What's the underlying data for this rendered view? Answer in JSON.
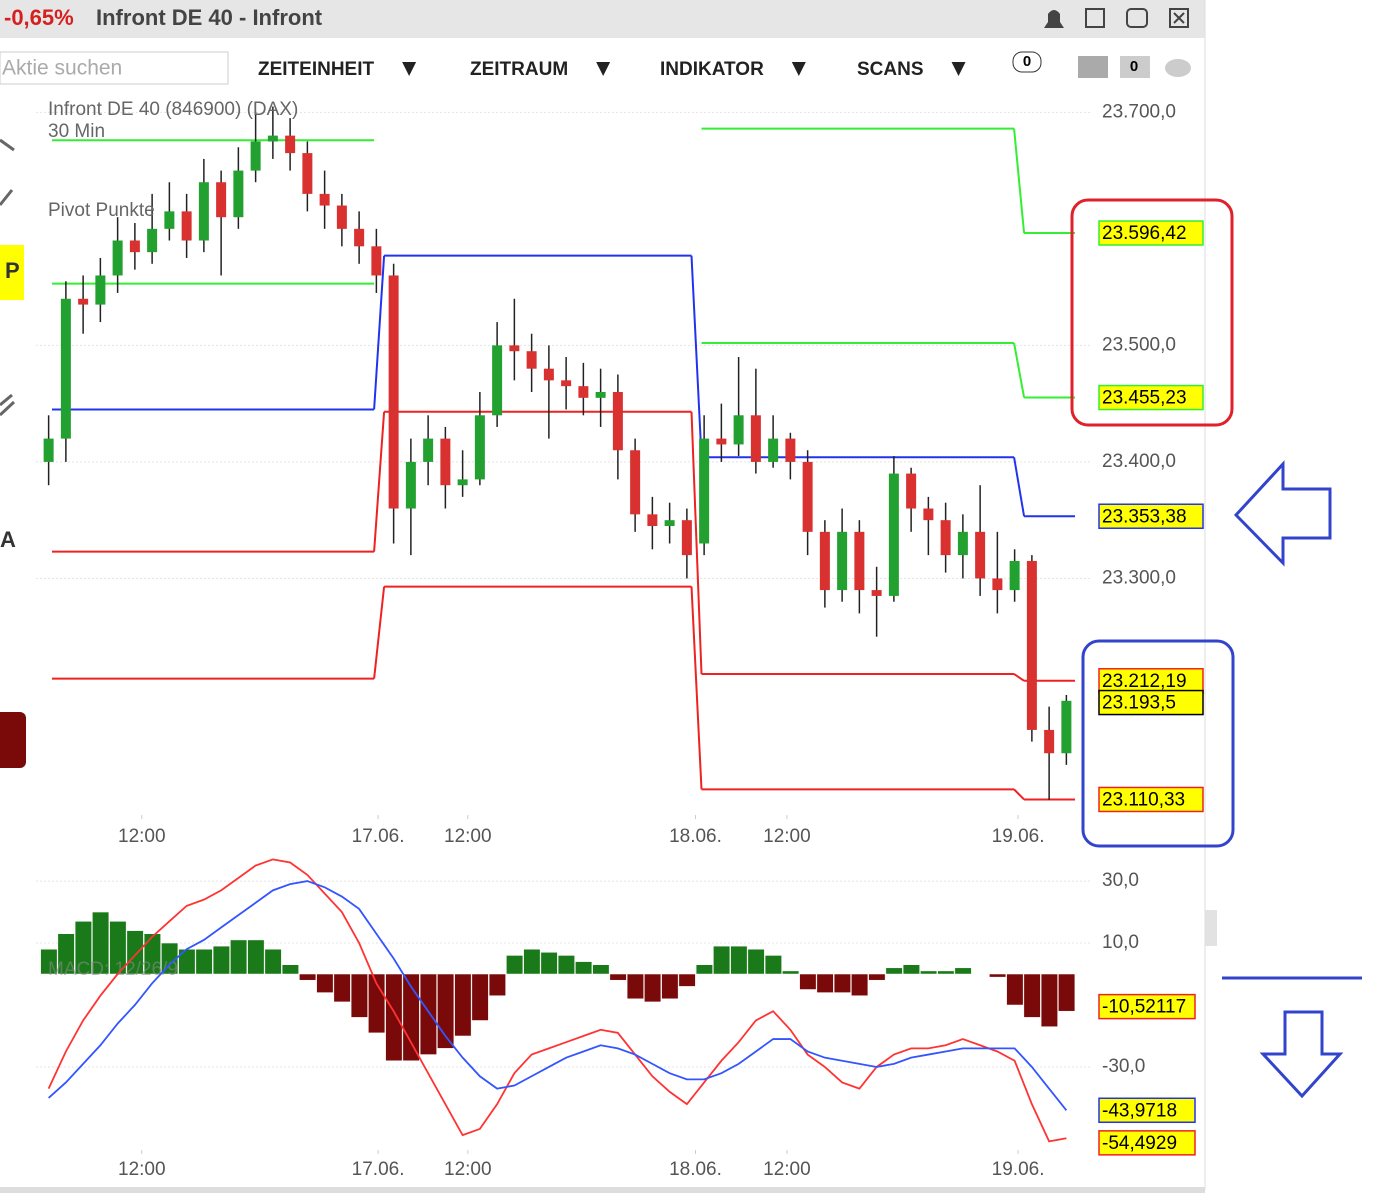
{
  "header": {
    "change": "-0,65%",
    "title": "Infront DE 40 - Infront"
  },
  "toolbar": {
    "search_placeholder": "Aktie suchen",
    "menus": [
      "ZEITEINHEIT",
      "ZEITRAUM",
      "INDIKATOR",
      "SCANS"
    ],
    "badges": [
      "0",
      "0"
    ]
  },
  "sidebar": [
    "P",
    "A"
  ],
  "chart_data": [
    {
      "type": "candlestick",
      "title": "Infront DE 40 (846900) (DAX)",
      "subtitle": "30 Min",
      "annotation": "Pivot Punkte",
      "open": [
        23400,
        23420,
        23540,
        23535,
        23560,
        23590,
        23580,
        23600,
        23615,
        23590,
        23640,
        23610,
        23650,
        23675,
        23680,
        23665,
        23630,
        23620,
        23600,
        23585,
        23560,
        23360,
        23400,
        23420,
        23380,
        23385,
        23440,
        23500,
        23495,
        23480,
        23470,
        23465,
        23455,
        23460,
        23410,
        23355,
        23345,
        23350,
        23330,
        23420,
        23415,
        23440,
        23400,
        23420,
        23400,
        23340,
        23290,
        23340,
        23290,
        23285,
        23390,
        23360,
        23350,
        23320,
        23340,
        23300,
        23290,
        23315,
        23170,
        23150
      ],
      "high": [
        23440,
        23555,
        23560,
        23575,
        23610,
        23605,
        23630,
        23640,
        23630,
        23660,
        23650,
        23670,
        23700,
        23705,
        23695,
        23675,
        23650,
        23630,
        23615,
        23600,
        23570,
        23420,
        23440,
        23430,
        23410,
        23460,
        23520,
        23540,
        23510,
        23500,
        23490,
        23485,
        23480,
        23475,
        23420,
        23370,
        23365,
        23360,
        23440,
        23450,
        23490,
        23480,
        23440,
        23425,
        23410,
        23350,
        23360,
        23350,
        23310,
        23405,
        23395,
        23370,
        23365,
        23355,
        23380,
        23340,
        23325,
        23320,
        23190,
        23200
      ],
      "low": [
        23380,
        23400,
        23510,
        23520,
        23545,
        23565,
        23570,
        23590,
        23575,
        23580,
        23560,
        23600,
        23640,
        23660,
        23650,
        23615,
        23600,
        23585,
        23570,
        23545,
        23330,
        23320,
        23380,
        23360,
        23370,
        23380,
        23430,
        23470,
        23460,
        23420,
        23445,
        23440,
        23430,
        23385,
        23340,
        23325,
        23330,
        23300,
        23320,
        23400,
        23405,
        23390,
        23395,
        23385,
        23320,
        23275,
        23280,
        23270,
        23250,
        23280,
        23340,
        23320,
        23305,
        23300,
        23285,
        23270,
        23280,
        23160,
        23110,
        23140
      ],
      "close": [
        23420,
        23540,
        23535,
        23560,
        23590,
        23580,
        23600,
        23615,
        23590,
        23640,
        23610,
        23650,
        23675,
        23680,
        23665,
        23630,
        23620,
        23600,
        23585,
        23560,
        23360,
        23400,
        23420,
        23380,
        23385,
        23440,
        23500,
        23495,
        23480,
        23470,
        23465,
        23455,
        23460,
        23410,
        23355,
        23345,
        23350,
        23320,
        23420,
        23415,
        23440,
        23400,
        23420,
        23400,
        23340,
        23290,
        23340,
        23290,
        23285,
        23390,
        23360,
        23350,
        23320,
        23340,
        23300,
        23290,
        23315,
        23170,
        23150,
        23195
      ],
      "up_color": "#22a030",
      "down_color": "#d93030",
      "xlim": [
        0,
        60
      ],
      "xticks": [
        {
          "value": 5.9,
          "label": "12:00"
        },
        {
          "value": 19.6,
          "label": "17.06."
        },
        {
          "value": 24.8,
          "label": "12:00"
        },
        {
          "value": 38,
          "label": "18.06."
        },
        {
          "value": 43.3,
          "label": "12:00"
        },
        {
          "value": 56.7,
          "label": "19.06."
        }
      ],
      "ylim": [
        23097,
        23714
      ],
      "yticks": [
        {
          "value": 23700,
          "label": "23.700,0"
        },
        {
          "value": 23500,
          "label": "23.500,0"
        },
        {
          "value": 23400,
          "label": "23.400,0"
        },
        {
          "value": 23300,
          "label": "23.300,0"
        }
      ],
      "grid": true,
      "levels": [
        {
          "color": "#33ee33",
          "values": [
            23676,
            null,
            23686,
            23596.42
          ]
        },
        {
          "color": "#33ee33",
          "values": [
            23553,
            null,
            23502,
            23455.23
          ]
        },
        {
          "color": "#2233ee",
          "values": [
            23445,
            23577,
            23404,
            23353.38
          ]
        },
        {
          "color": "#ee2222",
          "values": [
            23323,
            23443,
            23218,
            23212.19
          ]
        },
        {
          "color": "#ee2222",
          "values": [
            23214,
            23293,
            23119,
            23110.33
          ]
        }
      ],
      "tags": [
        {
          "value": 23596.42,
          "label": "23.596,42",
          "color": "#33ee33"
        },
        {
          "value": 23455.23,
          "label": "23.455,23",
          "color": "#33ee33"
        },
        {
          "value": 23353.38,
          "label": "23.353,38",
          "color": "#2233ee"
        },
        {
          "value": 23212.19,
          "label": "23.212,19",
          "color": "#ee2222"
        },
        {
          "value": 23193.5,
          "label": "23.193,5",
          "color": "#000000"
        },
        {
          "value": 23110.33,
          "label": "23.110,33",
          "color": "#ee2222"
        }
      ]
    },
    {
      "type": "macd",
      "annotation": "MACD: 12/26/9",
      "histogram": [
        8,
        13,
        17,
        20,
        17,
        14,
        13,
        10,
        8,
        8,
        9,
        11,
        11,
        8,
        3,
        -2,
        -6,
        -9,
        -14,
        -19,
        -28,
        -28,
        -26,
        -24,
        -20,
        -15,
        -7,
        6,
        8,
        7,
        6,
        4,
        3,
        -2,
        -8,
        -9,
        -8,
        -4,
        3,
        9,
        9,
        8,
        6,
        1,
        -5,
        -6,
        -6,
        -7,
        -2,
        2,
        3,
        1,
        1,
        2,
        0,
        -1,
        -10,
        -14,
        -17,
        -12
      ],
      "bar_colors": {
        "positive": "#1a7a1a",
        "negative": "#7a0a0a"
      },
      "series": [
        {
          "color": "#ff3333",
          "values": [
            -37,
            -25,
            -15,
            -7,
            0,
            6,
            12,
            17,
            22,
            24,
            27,
            31,
            35,
            37,
            36,
            32,
            26,
            20,
            10,
            -3,
            -12,
            -22,
            -32,
            -42,
            -52,
            -50,
            -42,
            -32,
            -26,
            -24,
            -22,
            -20,
            -18,
            -19,
            -26,
            -33,
            -38,
            -42,
            -35,
            -28,
            -22,
            -15,
            -12,
            -18,
            -26,
            -30,
            -35,
            -37,
            -30,
            -26,
            -24,
            -24,
            -23,
            -21,
            -23,
            -25,
            -28,
            -42,
            -54,
            -53
          ]
        },
        {
          "color": "#3355ff",
          "values": [
            -40,
            -35,
            -29,
            -23,
            -16,
            -10,
            -3,
            3,
            8,
            11,
            15,
            19,
            23,
            27,
            29,
            30,
            28,
            25,
            21,
            13,
            5,
            -4,
            -12,
            -20,
            -27,
            -33,
            -37,
            -36,
            -33,
            -30,
            -27,
            -25,
            -23,
            -24,
            -26,
            -29,
            -32,
            -34,
            -34,
            -32,
            -29,
            -25,
            -21,
            -21,
            -25,
            -27,
            -28,
            -29,
            -30,
            -29,
            -27,
            -26,
            -25,
            -24,
            -24,
            -24,
            -24,
            -30,
            -37,
            -44
          ]
        }
      ],
      "xlim": [
        0,
        60
      ],
      "xticks": [
        {
          "value": 5.9,
          "label": "12:00"
        },
        {
          "value": 19.6,
          "label": "17.06."
        },
        {
          "value": 24.8,
          "label": "12:00"
        },
        {
          "value": 38,
          "label": "18.06."
        },
        {
          "value": 43.3,
          "label": "12:00"
        },
        {
          "value": 56.7,
          "label": "19.06."
        }
      ],
      "ylim": [
        -56.8,
        36.8
      ],
      "yticks": [
        {
          "value": 30,
          "label": "30,0"
        },
        {
          "value": 10,
          "label": "10,0"
        },
        {
          "value": -30,
          "label": "-30,0"
        }
      ],
      "grid": true,
      "tags": [
        {
          "value": -10.52117,
          "label": "-10,52117",
          "color": "#ee2222"
        },
        {
          "value": -43.9718,
          "label": "-43,9718",
          "color": "#2233ee"
        },
        {
          "value": -54.4929,
          "label": "-54,4929",
          "color": "#ee2222"
        }
      ]
    }
  ]
}
